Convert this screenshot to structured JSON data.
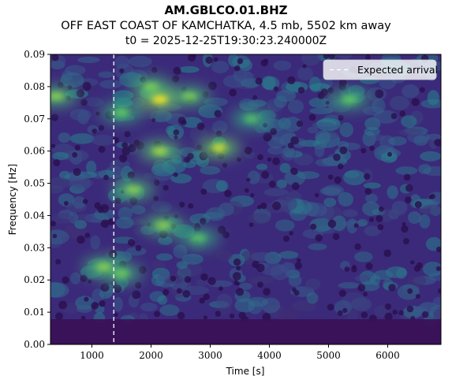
{
  "header": {
    "station": "AM.GBLCO.01.BHZ",
    "event": "OFF EAST COAST OF KAMCHATKA, 4.5 mb, 5502 km away",
    "t0": "t0 = 2025-12-25T19:30:23.240000Z"
  },
  "chart_data": {
    "type": "heatmap",
    "title": "AM.GBLCO.01.BHZ",
    "xlabel": "Time [s]",
    "ylabel": "Frequency [Hz]",
    "xlim": [
      300,
      6900
    ],
    "ylim": [
      0.0,
      0.09
    ],
    "xticks": [
      1000,
      2000,
      3000,
      4000,
      5000,
      6000
    ],
    "xtick_labels": [
      "1000",
      "2000",
      "3000",
      "4000",
      "5000",
      "6000"
    ],
    "yticks": [
      0.0,
      0.01,
      0.02,
      0.03,
      0.04,
      0.05,
      0.06,
      0.07,
      0.08,
      0.09
    ],
    "ytick_labels": [
      "0.00",
      "0.01",
      "0.02",
      "0.03",
      "0.04",
      "0.05",
      "0.06",
      "0.07",
      "0.08",
      "0.09"
    ],
    "colormap": "viridis",
    "grid": false,
    "expected_arrival": {
      "time": 1370,
      "label": "Expected arrival",
      "style": "dashed",
      "color": "#ffffff"
    },
    "legend": {
      "placement": "top-right",
      "entries": [
        "Expected arrival"
      ]
    },
    "hotspots": [
      {
        "time": 2150,
        "freq": 0.076,
        "intensity": 1.0
      },
      {
        "time": 3150,
        "freq": 0.061,
        "intensity": 0.85
      },
      {
        "time": 2150,
        "freq": 0.06,
        "intensity": 0.7
      },
      {
        "time": 1700,
        "freq": 0.048,
        "intensity": 0.6
      },
      {
        "time": 2200,
        "freq": 0.037,
        "intensity": 0.6
      },
      {
        "time": 1200,
        "freq": 0.024,
        "intensity": 0.6
      },
      {
        "time": 2650,
        "freq": 0.077,
        "intensity": 0.55
      },
      {
        "time": 400,
        "freq": 0.077,
        "intensity": 0.6
      },
      {
        "time": 5350,
        "freq": 0.076,
        "intensity": 0.45
      },
      {
        "time": 2000,
        "freq": 0.08,
        "intensity": 0.55
      },
      {
        "time": 1500,
        "freq": 0.072,
        "intensity": 0.45
      },
      {
        "time": 1500,
        "freq": 0.022,
        "intensity": 0.5
      },
      {
        "time": 2800,
        "freq": 0.033,
        "intensity": 0.4
      },
      {
        "time": 3700,
        "freq": 0.07,
        "intensity": 0.35
      }
    ]
  }
}
